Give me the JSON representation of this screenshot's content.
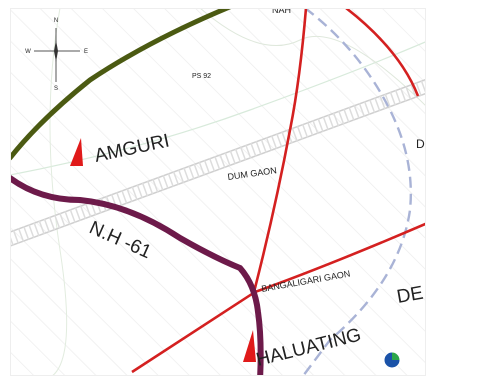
{
  "map": {
    "place_labels": {
      "amguri": "AMGURI",
      "dum_gaon": "DUM GAON",
      "bangaligari_gaon": "BANGALIGARI GAON",
      "haluating": "HALUATING",
      "de_partial": "DE",
      "d_partial": "D",
      "nah_partial": "NAH"
    },
    "road_label": "N.H -61",
    "ps_label": "PS 92",
    "compass": {
      "north": "N",
      "south": "S",
      "east": "E",
      "west": "W"
    },
    "colors": {
      "background": "#ffffff",
      "national_highway": "#6d1a4a",
      "major_road": "#d42020",
      "green_route": "#4b5a12",
      "railway": "#cccccc",
      "dashed_boundary": "#a9b3d6",
      "hatch": "#e8e8e8",
      "marker": "#e01a1a",
      "border": "#eaeaea"
    },
    "icons": [
      "village-marker-icon",
      "compass-rose-icon",
      "globe-icon",
      "railway-track"
    ]
  }
}
